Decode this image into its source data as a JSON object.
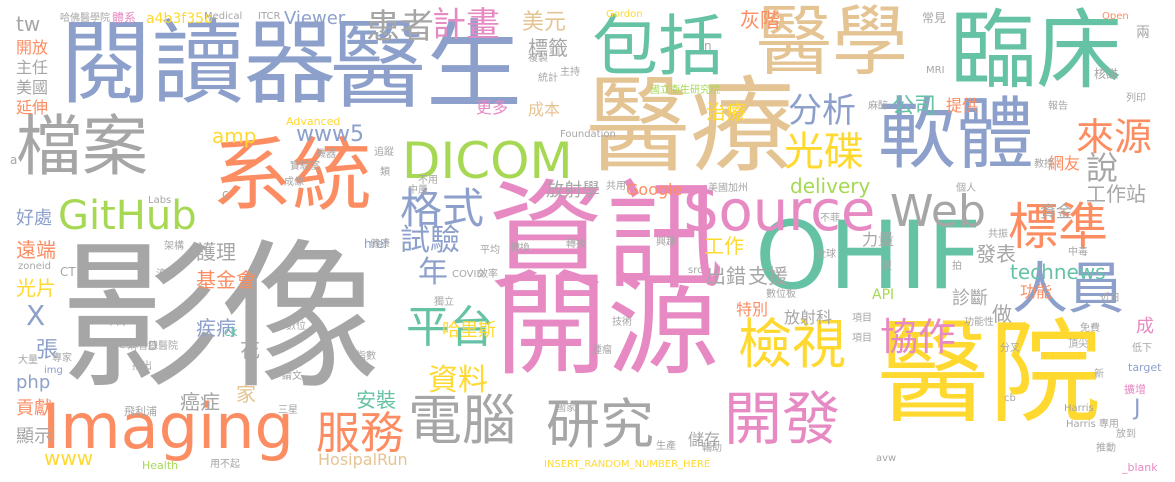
{
  "palette": {
    "pink": "#e78ac3",
    "gray": "#a6a6a6",
    "green": "#66c2a5",
    "orange": "#fc8d62",
    "blue": "#8da0cb",
    "lime": "#a6d854",
    "yellow": "#ffd92f",
    "tan": "#e5c494"
  },
  "words": [
    {
      "text": "影像",
      "color": "gray"
    },
    {
      "text": "資訊",
      "color": "pink"
    },
    {
      "text": "開源",
      "color": "pink"
    },
    {
      "text": "醫院",
      "color": "yellow"
    },
    {
      "text": "OHIF",
      "color": "green"
    },
    {
      "text": "醫療",
      "color": "tan"
    },
    {
      "text": "閱讀器",
      "color": "blue"
    },
    {
      "text": "醫生",
      "color": "blue"
    },
    {
      "text": "醫學",
      "color": "tan"
    },
    {
      "text": "臨床",
      "color": "green"
    },
    {
      "text": "系統",
      "color": "orange"
    },
    {
      "text": "檔案",
      "color": "gray"
    },
    {
      "text": "軟體",
      "color": "blue"
    },
    {
      "text": "Imaging",
      "color": "orange"
    },
    {
      "text": "Source",
      "color": "pink"
    },
    {
      "text": "包括",
      "color": "green"
    },
    {
      "text": "DICOM",
      "color": "lime"
    },
    {
      "text": "電腦",
      "color": "gray"
    },
    {
      "text": "研究",
      "color": "gray"
    },
    {
      "text": "開發",
      "color": "pink"
    },
    {
      "text": "人員",
      "color": "blue"
    },
    {
      "text": "檢視",
      "color": "yellow"
    },
    {
      "text": "標準",
      "color": "orange"
    },
    {
      "text": "平台",
      "color": "green"
    },
    {
      "text": "Web",
      "color": "gray"
    },
    {
      "text": "GitHub",
      "color": "lime"
    },
    {
      "text": "格式",
      "color": "blue"
    },
    {
      "text": "光碟",
      "color": "yellow"
    },
    {
      "text": "服務",
      "color": "orange"
    },
    {
      "text": "協作",
      "color": "pink"
    },
    {
      "text": "來源",
      "color": "orange"
    },
    {
      "text": "分析",
      "color": "blue"
    },
    {
      "text": "患者",
      "color": "gray"
    },
    {
      "text": "計畫",
      "color": "pink"
    },
    {
      "text": "technews",
      "color": "green"
    },
    {
      "text": "www5",
      "color": "blue"
    },
    {
      "text": "試驗",
      "color": "blue"
    },
    {
      "text": "年",
      "color": "blue"
    },
    {
      "text": "資料",
      "color": "yellow"
    },
    {
      "text": "說",
      "color": "gray"
    },
    {
      "text": "delivery",
      "color": "lime"
    },
    {
      "text": "美元",
      "color": "tan"
    },
    {
      "text": "公司",
      "color": "green"
    },
    {
      "text": "標籤",
      "color": "gray"
    },
    {
      "text": "工作站",
      "color": "gray"
    },
    {
      "text": "amp",
      "color": "yellow"
    },
    {
      "text": "放射學",
      "color": "gray"
    },
    {
      "text": "Google",
      "color": "orange"
    },
    {
      "text": "治療",
      "color": "yellow"
    },
    {
      "text": "灰階",
      "color": "orange"
    },
    {
      "text": "工作",
      "color": "yellow"
    },
    {
      "text": "出錯",
      "color": "gray"
    },
    {
      "text": "發表",
      "color": "gray"
    },
    {
      "text": "支援",
      "color": "gray"
    },
    {
      "text": "遠端",
      "color": "orange"
    },
    {
      "text": "基金會",
      "color": "orange"
    },
    {
      "text": "光片",
      "color": "yellow"
    },
    {
      "text": "好處",
      "color": "blue"
    },
    {
      "text": "護理",
      "color": "gray"
    },
    {
      "text": "哈里斯",
      "color": "yellow"
    },
    {
      "text": "診斷",
      "color": "gray"
    },
    {
      "text": "做",
      "color": "gray"
    },
    {
      "text": "功能",
      "color": "orange"
    },
    {
      "text": "疾病",
      "color": "blue"
    },
    {
      "text": "安裝",
      "color": "green"
    },
    {
      "text": "癌症",
      "color": "gray"
    },
    {
      "text": "花",
      "color": "gray"
    },
    {
      "text": "家",
      "color": "tan"
    },
    {
      "text": "貢獻",
      "color": "orange"
    },
    {
      "text": "顯示",
      "color": "gray"
    },
    {
      "text": "php",
      "color": "blue"
    },
    {
      "text": "張",
      "color": "blue"
    },
    {
      "text": "www",
      "color": "yellow"
    },
    {
      "text": "X",
      "color": "blue"
    },
    {
      "text": "tw",
      "color": "gray"
    },
    {
      "text": "開放",
      "color": "orange"
    },
    {
      "text": "主任",
      "color": "gray"
    },
    {
      "text": "美國",
      "color": "gray"
    },
    {
      "text": "延伸",
      "color": "orange"
    },
    {
      "text": "Viewer",
      "color": "blue"
    },
    {
      "text": "更多",
      "color": "pink"
    },
    {
      "text": "成本",
      "color": "tan"
    },
    {
      "text": "提供",
      "color": "orange"
    },
    {
      "text": "網友",
      "color": "orange"
    },
    {
      "text": "資金",
      "color": "gray"
    },
    {
      "text": "力量",
      "color": "gray"
    },
    {
      "text": "API",
      "color": "lime"
    },
    {
      "text": "特別",
      "color": "orange"
    },
    {
      "text": "放射科",
      "color": "gray"
    },
    {
      "text": "儲存",
      "color": "gray"
    },
    {
      "text": "HosipalRun",
      "color": "tan"
    },
    {
      "text": "J",
      "color": "blue"
    },
    {
      "text": "成",
      "color": "pink"
    },
    {
      "text": "兩",
      "color": "gray"
    },
    {
      "text": "a4b3f35b",
      "color": "yellow"
    },
    {
      "text": "哈佛醫學院",
      "color": "gray"
    },
    {
      "text": "體系",
      "color": "pink"
    },
    {
      "text": "Medical",
      "color": "gray"
    },
    {
      "text": "ITCR",
      "color": "gray"
    },
    {
      "text": "Advanced",
      "color": "yellow"
    },
    {
      "text": "Gordon",
      "color": "yellow"
    },
    {
      "text": "Open",
      "color": "orange"
    },
    {
      "text": "常見",
      "color": "gray"
    },
    {
      "text": "Foundation",
      "color": "gray"
    },
    {
      "text": "核磁",
      "color": "gray"
    },
    {
      "text": "MRI",
      "color": "gray"
    },
    {
      "text": "Labs",
      "color": "gray"
    },
    {
      "text": "href",
      "color": "blue"
    },
    {
      "text": "zoneid",
      "color": "gray"
    },
    {
      "text": "CT",
      "color": "gray"
    },
    {
      "text": "ck",
      "color": "green"
    },
    {
      "text": "src",
      "color": "gray"
    },
    {
      "text": "COVID",
      "color": "gray"
    },
    {
      "text": "Health",
      "color": "lime"
    },
    {
      "text": "INSERT_RANDOM_NUMBER_HERE",
      "color": "yellow"
    },
    {
      "text": "target",
      "color": "blue"
    },
    {
      "text": "_blank",
      "color": "pink"
    },
    {
      "text": "Harris",
      "color": "gray"
    },
    {
      "text": "avw",
      "color": "gray"
    },
    {
      "text": "cb",
      "color": "gray"
    },
    {
      "text": "img",
      "color": "blue"
    },
    {
      "text": "美國加州",
      "color": "gray"
    },
    {
      "text": "實驗室",
      "color": "gray"
    },
    {
      "text": "國立衛生研究院",
      "color": "lime"
    },
    {
      "text": "中風",
      "color": "gray"
    },
    {
      "text": "數位",
      "color": "gray"
    },
    {
      "text": "數位板",
      "color": "gray"
    },
    {
      "text": "飛利浦",
      "color": "gray"
    },
    {
      "text": "三星",
      "color": "gray"
    },
    {
      "text": "麻省總醫院",
      "color": "gray"
    },
    {
      "text": "推出",
      "color": "gray"
    },
    {
      "text": "全球",
      "color": "gray"
    },
    {
      "text": "免費",
      "color": "gray"
    },
    {
      "text": "轉換",
      "color": "gray"
    },
    {
      "text": "中毒",
      "color": "gray"
    },
    {
      "text": "教授",
      "color": "gray"
    },
    {
      "text": "機器",
      "color": "gray"
    },
    {
      "text": "放到",
      "color": "gray"
    },
    {
      "text": "擴增",
      "color": "pink"
    },
    {
      "text": "功能性",
      "color": "gray"
    },
    {
      "text": "統計",
      "color": "gray"
    },
    {
      "text": "複製",
      "color": "gray"
    },
    {
      "text": "列印",
      "color": "gray"
    },
    {
      "text": "轉換",
      "color": "gray"
    },
    {
      "text": "流行",
      "color": "gray"
    },
    {
      "text": "專家",
      "color": "gray"
    },
    {
      "text": "大量",
      "color": "gray"
    },
    {
      "text": "千萬",
      "color": "gray"
    },
    {
      "text": "定量",
      "color": "gray"
    },
    {
      "text": "更",
      "color": "gray"
    },
    {
      "text": "拍",
      "color": "gray"
    },
    {
      "text": "a",
      "color": "gray"
    },
    {
      "text": "n",
      "color": "gray"
    },
    {
      "text": "c",
      "color": "gray"
    },
    {
      "text": "D",
      "color": "gray"
    },
    {
      "text": "主持",
      "color": "gray"
    },
    {
      "text": "低下",
      "color": "gray"
    },
    {
      "text": "推動",
      "color": "gray"
    },
    {
      "text": "個人",
      "color": "gray"
    },
    {
      "text": "近日",
      "color": "gray"
    },
    {
      "text": "用不起",
      "color": "gray"
    },
    {
      "text": "不用",
      "color": "gray"
    },
    {
      "text": "生產",
      "color": "gray"
    },
    {
      "text": "輔助",
      "color": "gray"
    },
    {
      "text": "新",
      "color": "gray"
    },
    {
      "text": "分叉",
      "color": "gray"
    },
    {
      "text": "Harris 專用",
      "color": "gray"
    },
    {
      "text": "國家",
      "color": "gray"
    },
    {
      "text": "技術",
      "color": "gray"
    },
    {
      "text": "獨立",
      "color": "gray"
    },
    {
      "text": "論文",
      "color": "gray"
    },
    {
      "text": "平均",
      "color": "gray"
    },
    {
      "text": "效率",
      "color": "gray"
    },
    {
      "text": "興趣",
      "color": "gray"
    },
    {
      "text": "項目",
      "color": "gray"
    },
    {
      "text": "成像",
      "color": "gray"
    },
    {
      "text": "架構",
      "color": "gray"
    },
    {
      "text": "健康",
      "color": "gray"
    },
    {
      "text": "共用",
      "color": "gray"
    },
    {
      "text": "共振",
      "color": "gray"
    },
    {
      "text": "追蹤",
      "color": "gray"
    },
    {
      "text": "麻醉",
      "color": "gray"
    },
    {
      "text": "類",
      "color": "gray"
    },
    {
      "text": "指數",
      "color": "gray"
    },
    {
      "text": "報告",
      "color": "gray"
    },
    {
      "text": "腫瘤",
      "color": "gray"
    },
    {
      "text": "項目",
      "color": "gray"
    },
    {
      "text": "不菲",
      "color": "gray"
    },
    {
      "text": "頂尖",
      "color": "gray"
    }
  ]
}
